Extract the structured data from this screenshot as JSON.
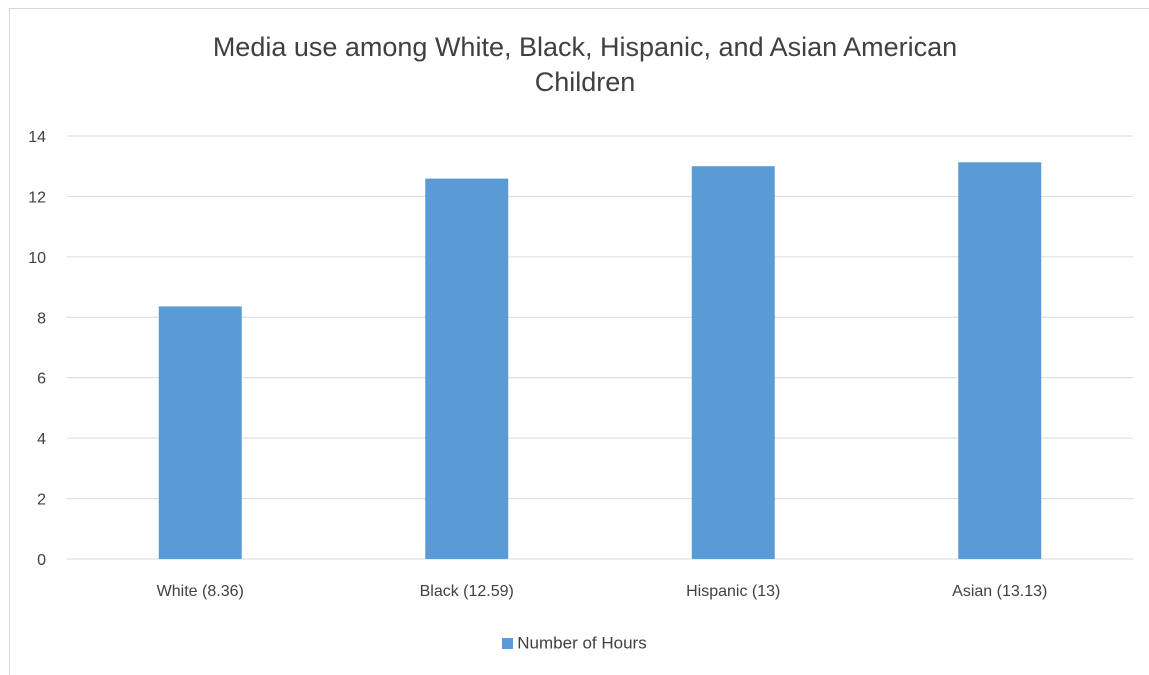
{
  "chart_data": {
    "type": "bar",
    "title_lines": [
      "Media use among White, Black, Hispanic, and Asian American",
      "Children"
    ],
    "categories": [
      "White (8.36)",
      "Black (12.59)",
      "Hispanic (13)",
      "Asian (13.13)"
    ],
    "series": [
      {
        "name": "Number of Hours",
        "values": [
          8.36,
          12.59,
          13,
          13.13
        ],
        "color": "#5b9bd5"
      }
    ],
    "yticks": [
      0,
      2,
      4,
      6,
      8,
      10,
      12,
      14
    ],
    "ylim": [
      0,
      14
    ],
    "grid": true,
    "legend_position": "bottom",
    "colors": {
      "bar": "#5b9bd5",
      "grid": "#d9d9d9",
      "text": "#404040"
    }
  }
}
